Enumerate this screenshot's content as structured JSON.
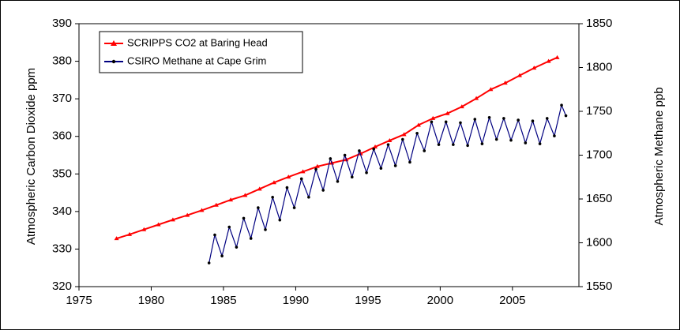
{
  "chart_data": {
    "type": "line",
    "y_label": "Atmospheric Carbon Dioxide ppm",
    "y2_label": "Atmospheric Methane ppb",
    "xlim": [
      1975,
      2009.6
    ],
    "xticks": [
      1975,
      1980,
      1985,
      1990,
      1995,
      2000,
      2005
    ],
    "ylim": [
      320,
      390
    ],
    "yticks": [
      320,
      330,
      340,
      350,
      360,
      370,
      380,
      390
    ],
    "y2lim": [
      1550,
      1850
    ],
    "y2ticks": [
      1550,
      1600,
      1650,
      1700,
      1750,
      1800,
      1850
    ],
    "series": [
      {
        "name": "SCRIPPS CO2 at Baring Head",
        "color": "#ff0000",
        "marker": "triangle",
        "x": [
          1977.6,
          1978.5,
          1979.5,
          1980.5,
          1981.5,
          1982.5,
          1983.5,
          1984.5,
          1985.5,
          1986.5,
          1987.5,
          1988.5,
          1989.5,
          1990.5,
          1991.5,
          1992.5,
          1993.5,
          1994.5,
          1995.5,
          1996.5,
          1997.5,
          1998.5,
          1999.5,
          2000.5,
          2001.5,
          2002.5,
          2003.5,
          2004.5,
          2005.5,
          2006.5,
          2007.5,
          2008.1
        ],
        "values": [
          332.8,
          333.9,
          335.2,
          336.5,
          337.8,
          339,
          340.3,
          341.7,
          343.1,
          344.3,
          346,
          347.7,
          349.2,
          350.6,
          352,
          352.9,
          353.8,
          355.4,
          357.2,
          358.9,
          360.5,
          363,
          364.8,
          366.1,
          367.9,
          370.1,
          372.5,
          374.2,
          376.2,
          378.2,
          380,
          381
        ]
      },
      {
        "name": "CSIRO Methane at Cape Grim",
        "color": "#000080",
        "marker": "dot",
        "axis": "y2",
        "x": [
          1984.0,
          1984.4,
          1984.9,
          1985.4,
          1985.9,
          1986.4,
          1986.9,
          1987.4,
          1987.9,
          1988.4,
          1988.9,
          1989.4,
          1989.9,
          1990.4,
          1990.9,
          1991.4,
          1991.9,
          1992.4,
          1992.9,
          1993.4,
          1993.9,
          1994.4,
          1994.9,
          1995.4,
          1995.9,
          1996.4,
          1996.9,
          1997.4,
          1997.9,
          1998.4,
          1998.9,
          1999.4,
          1999.9,
          2000.4,
          2000.9,
          2001.4,
          2001.9,
          2002.4,
          2002.9,
          2003.4,
          2003.9,
          2004.4,
          2004.9,
          2005.4,
          2005.9,
          2006.4,
          2006.9,
          2007.4,
          2007.9,
          2008.4,
          2008.7
        ],
        "values": [
          1577,
          1609,
          1585,
          1618,
          1595,
          1628,
          1605,
          1640,
          1615,
          1652,
          1626,
          1663,
          1640,
          1673,
          1652,
          1684,
          1660,
          1696,
          1670,
          1700,
          1675,
          1705,
          1680,
          1707,
          1685,
          1712,
          1688,
          1718,
          1692,
          1725,
          1705,
          1738,
          1712,
          1738,
          1712,
          1737,
          1711,
          1741,
          1713,
          1743,
          1718,
          1742,
          1717,
          1740,
          1714,
          1739,
          1713,
          1742,
          1722,
          1757,
          1745
        ]
      }
    ]
  }
}
